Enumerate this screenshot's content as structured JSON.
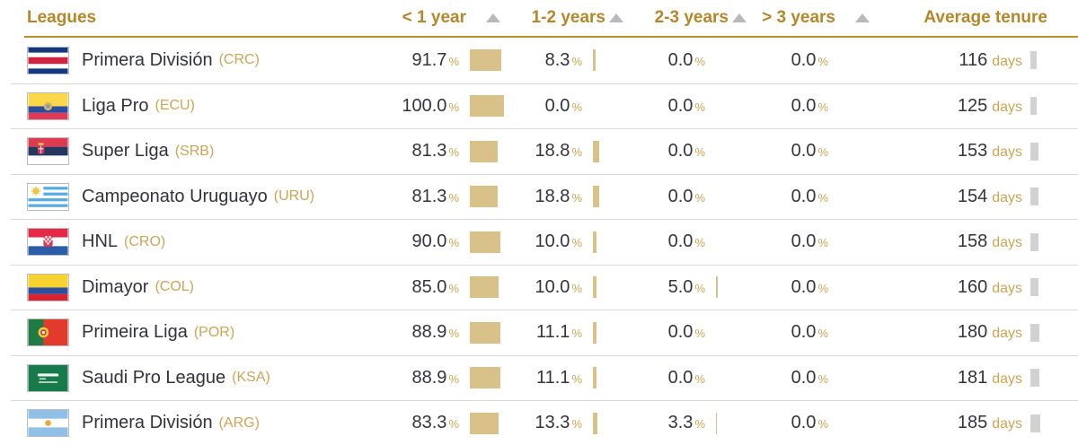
{
  "header": {
    "leagues_label": "Leagues",
    "cols": [
      {
        "label": "< 1 year",
        "sort_icon": "triangle-up"
      },
      {
        "label": "1-2 years",
        "sort_icon": "triangle-up"
      },
      {
        "label": "2-3 years",
        "sort_icon": "triangle-up"
      },
      {
        "label": "> 3 years",
        "sort_icon": "triangle-up"
      }
    ],
    "avg_label": "Average tenure"
  },
  "units": {
    "percent": "%",
    "days": "days"
  },
  "rows": [
    {
      "name": "Primera División",
      "code": "(CRC)",
      "flag_icon": "costa-rica-flag",
      "lt1": "91.7",
      "y12": "8.3",
      "y23": "0.0",
      "gt3": "0.0",
      "days": "116"
    },
    {
      "name": "Liga Pro",
      "code": "(ECU)",
      "flag_icon": "ecuador-flag",
      "lt1": "100.0",
      "y12": "0.0",
      "y23": "0.0",
      "gt3": "0.0",
      "days": "125"
    },
    {
      "name": "Super Liga",
      "code": "(SRB)",
      "flag_icon": "serbia-flag",
      "lt1": "81.3",
      "y12": "18.8",
      "y23": "0.0",
      "gt3": "0.0",
      "days": "153"
    },
    {
      "name": "Campeonato Uruguayo",
      "code": "(URU)",
      "flag_icon": "uruguay-flag",
      "lt1": "81.3",
      "y12": "18.8",
      "y23": "0.0",
      "gt3": "0.0",
      "days": "154"
    },
    {
      "name": "HNL",
      "code": "(CRO)",
      "flag_icon": "croatia-flag",
      "lt1": "90.0",
      "y12": "10.0",
      "y23": "0.0",
      "gt3": "0.0",
      "days": "158"
    },
    {
      "name": "Dimayor",
      "code": "(COL)",
      "flag_icon": "colombia-flag",
      "lt1": "85.0",
      "y12": "10.0",
      "y23": "5.0",
      "gt3": "0.0",
      "days": "160"
    },
    {
      "name": "Primeira Liga",
      "code": "(POR)",
      "flag_icon": "portugal-flag",
      "lt1": "88.9",
      "y12": "11.1",
      "y23": "0.0",
      "gt3": "0.0",
      "days": "180"
    },
    {
      "name": "Saudi Pro League",
      "code": "(KSA)",
      "flag_icon": "saudi-arabia-flag",
      "lt1": "88.9",
      "y12": "11.1",
      "y23": "0.0",
      "gt3": "0.0",
      "days": "181"
    },
    {
      "name": "Primera División",
      "code": "(ARG)",
      "flag_icon": "argentina-flag",
      "lt1": "83.3",
      "y12": "13.3",
      "y23": "3.3",
      "gt3": "0.0",
      "days": "185"
    }
  ],
  "colors": {
    "header_gold": "#b5872a",
    "accent_gold_light": "#cfa455",
    "percent_bar": "#d9c18a",
    "days_bar": "#d2d2d2",
    "text_dark": "#32333b",
    "divider": "#dadada",
    "header_underline": "#bf8c25"
  }
}
